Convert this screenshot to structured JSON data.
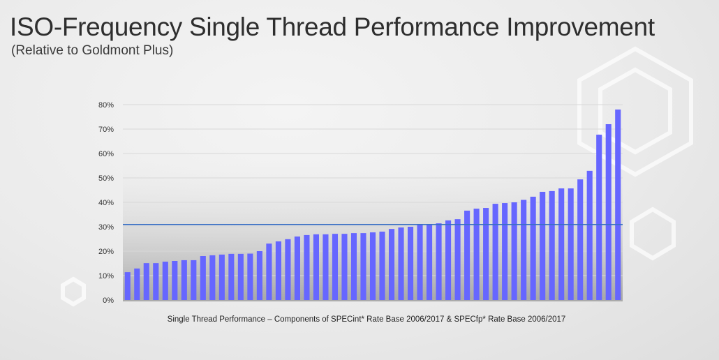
{
  "header": {
    "title": "ISO-Frequency Single Thread Performance Improvement",
    "subtitle": "(Relative to Goldmont Plus)"
  },
  "chart_data": {
    "type": "bar",
    "title": "ISO-Frequency Single Thread Performance Improvement",
    "subtitle": "(Relative to Goldmont Plus)",
    "xlabel": "Single Thread Performance – Components of SPECint* Rate Base 2006/2017 & SPECfp* Rate Base 2006/2017",
    "ylabel": "",
    "ylim": [
      0,
      80
    ],
    "yticks": [
      "0%",
      "10%",
      "20%",
      "30%",
      "40%",
      "50%",
      "60%",
      "70%",
      "80%"
    ],
    "grid": true,
    "bar_color": "#6666ff",
    "reference_line": {
      "value": 30.9,
      "color": "#3a6fc4"
    },
    "values": [
      11.4,
      12.9,
      15.1,
      15.1,
      15.7,
      16.0,
      16.3,
      16.3,
      18.0,
      18.3,
      18.6,
      18.9,
      18.9,
      19.0,
      20.0,
      23.1,
      24.0,
      24.9,
      26.0,
      26.6,
      26.9,
      26.9,
      27.1,
      27.1,
      27.4,
      27.4,
      27.7,
      28.0,
      29.1,
      29.7,
      30.0,
      30.9,
      30.9,
      31.4,
      32.6,
      33.1,
      36.6,
      37.4,
      37.7,
      39.4,
      39.7,
      40.0,
      41.0,
      42.3,
      44.3,
      44.6,
      45.7,
      45.7,
      49.4,
      52.9,
      67.7,
      72.0,
      78.0
    ]
  }
}
